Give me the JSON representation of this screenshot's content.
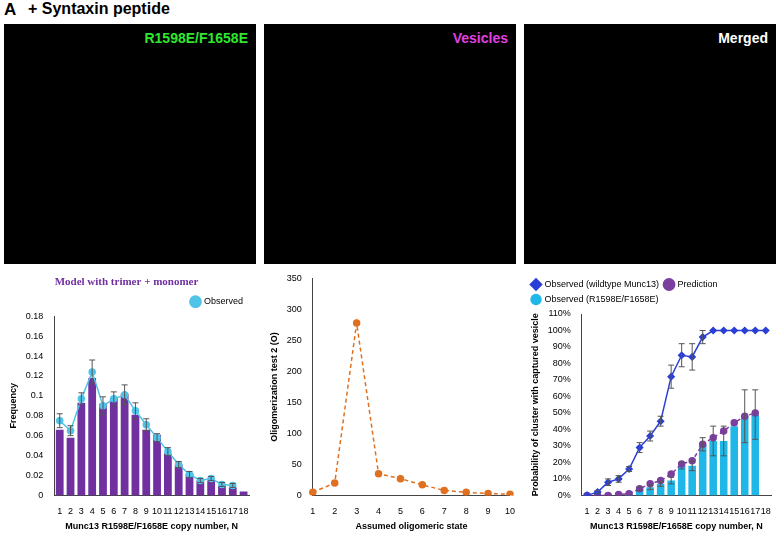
{
  "panel_letter": "A",
  "title": "+ Syntaxin peptide",
  "images": [
    {
      "label": "R1598E/F1658E",
      "color": "#2ee82e"
    },
    {
      "label": "Vesicles",
      "color": "#e040e0"
    },
    {
      "label": "Merged",
      "color": "#ffffff"
    }
  ],
  "chart_data": [
    {
      "type": "bar",
      "title": "Model with trimer + monomer",
      "x_label": "Munc13 R1598E/F1658E copy number, N",
      "y_label": "Frequency",
      "categories": [
        1,
        2,
        3,
        4,
        5,
        6,
        7,
        8,
        9,
        10,
        11,
        12,
        13,
        14,
        15,
        16,
        17,
        18
      ],
      "series": [
        {
          "type": "bar",
          "color": "#7030a0",
          "values": [
            0.066,
            0.058,
            0.093,
            0.118,
            0.092,
            0.098,
            0.102,
            0.081,
            0.066,
            0.061,
            0.042,
            0.031,
            0.022,
            0.015,
            0.015,
            0.01,
            0.008,
            0.004
          ]
        },
        {
          "name": "Observed",
          "type": "line",
          "color": "#4fc3e8",
          "marker": "circle",
          "values": [
            0.075,
            0.065,
            0.097,
            0.124,
            0.09,
            0.097,
            0.101,
            0.085,
            0.071,
            0.058,
            0.044,
            0.031,
            0.021,
            0.015,
            0.017,
            0.011,
            0.01,
            null
          ],
          "errors": [
            0.007,
            0.005,
            0.006,
            0.012,
            0.009,
            0.007,
            0.01,
            0.008,
            0.006,
            0.004,
            0.004,
            0.003,
            0.003,
            0.002,
            0.002,
            0.002,
            0.002,
            null
          ]
        }
      ],
      "ylim": [
        0,
        0.18
      ],
      "yticks": [
        0,
        0.02,
        0.04,
        0.06,
        0.08,
        0.1,
        0.12,
        0.14,
        0.16,
        0.18
      ],
      "legend": "upper right",
      "grid": false
    },
    {
      "type": "line",
      "x_label": "Assumed oligomeric state",
      "y_label": "Oligomerization test 2 (O)",
      "categories": [
        1,
        2,
        3,
        4,
        5,
        6,
        7,
        8,
        9,
        10
      ],
      "values": [
        5,
        20,
        278,
        35,
        27,
        17,
        8,
        5,
        3,
        2
      ],
      "color": "#e07020",
      "marker": "circle",
      "line_style": "dashed",
      "ylim": [
        0,
        350
      ],
      "yticks": [
        0,
        50,
        100,
        150,
        200,
        250,
        300,
        350
      ],
      "grid": false
    },
    {
      "type": "bar",
      "x_label": "Munc13 R1598E/F1658E copy number, N",
      "y_label": "Probability of cluster with captured vesicle",
      "categories": [
        1,
        2,
        3,
        4,
        5,
        6,
        7,
        8,
        9,
        10,
        11,
        12,
        13,
        14,
        15,
        16,
        17,
        18
      ],
      "series": [
        {
          "name": "Observed (R1598E/F1658E)",
          "type": "bar",
          "color": "#1fb6e8",
          "values": [
            0,
            0,
            0,
            0,
            0.5,
            4,
            5,
            7,
            9,
            18,
            18,
            31,
            33,
            33,
            42,
            48,
            49,
            null
          ],
          "errors": [
            null,
            null,
            null,
            null,
            null,
            1,
            1.5,
            1.5,
            2,
            2,
            3,
            4,
            9,
            9,
            null,
            16,
            15,
            null
          ]
        },
        {
          "name": "Observed (wildtype Munc13)",
          "type": "line",
          "color": "#2a3fd6",
          "marker": "diamond",
          "values": [
            0,
            2,
            8,
            10,
            16,
            29,
            36,
            45,
            72,
            85,
            84,
            96,
            100,
            100,
            100,
            100,
            100,
            100
          ],
          "errors": [
            null,
            1,
            2,
            2,
            1.5,
            3,
            3,
            3,
            7,
            7,
            8,
            4,
            null,
            null,
            null,
            null,
            null,
            null
          ]
        },
        {
          "name": "Prediction",
          "type": "line",
          "color": "#7b3fa0",
          "marker": "circle",
          "line_style": "dashed",
          "values": [
            0,
            0,
            0,
            0.5,
            1,
            4,
            7,
            9,
            13,
            19,
            21,
            31,
            35,
            39,
            44,
            48,
            50,
            null
          ]
        }
      ],
      "ylim": [
        0,
        110
      ],
      "yticks": [
        {
          "value": 0,
          "label": "0%"
        },
        {
          "value": 10,
          "label": "10%"
        },
        {
          "value": 20,
          "label": "20%"
        },
        {
          "value": 30,
          "label": "30%"
        },
        {
          "value": 40,
          "label": "40%"
        },
        {
          "value": 50,
          "label": "50%"
        },
        {
          "value": 60,
          "label": "60%"
        },
        {
          "value": 70,
          "label": "70%"
        },
        {
          "value": 80,
          "label": "80%"
        },
        {
          "value": 90,
          "label": "90%"
        },
        {
          "value": 100,
          "label": "100%"
        },
        {
          "value": 110,
          "label": "110%"
        }
      ],
      "legend": "upper left",
      "grid": false
    }
  ]
}
